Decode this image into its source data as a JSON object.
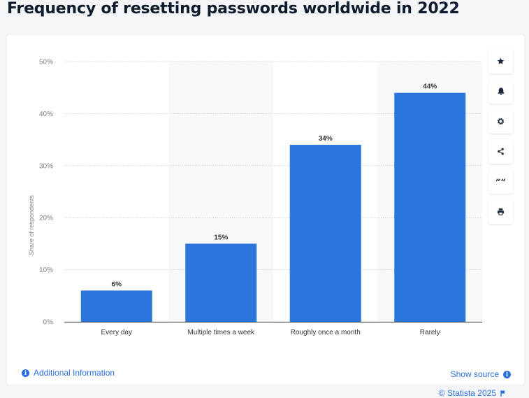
{
  "page": {
    "title": "Frequency of resetting passwords worldwide in 2022"
  },
  "chart_data": {
    "type": "bar",
    "title": "Frequency of resetting passwords worldwide in 2022",
    "xlabel": "",
    "ylabel": "Share of respondents",
    "categories": [
      "Every day",
      "Multiple times a week",
      "Roughly once a month",
      "Rarely"
    ],
    "values": [
      6,
      15,
      34,
      44
    ],
    "value_labels": [
      "6%",
      "15%",
      "34%",
      "44%"
    ],
    "ylim": [
      0,
      50
    ],
    "yticks": [
      0,
      10,
      20,
      30,
      40,
      50
    ],
    "ytick_labels": [
      "0%",
      "10%",
      "20%",
      "30%",
      "40%",
      "50%"
    ],
    "grid": true,
    "alternate_band_shading": true,
    "colors": {
      "bar": "#2a76dd",
      "band": "#f7f8f9",
      "grid": "#c8c8c8"
    }
  },
  "toolbar": {
    "buttons": [
      {
        "name": "favorite",
        "icon": "star-icon"
      },
      {
        "name": "notification",
        "icon": "bell-icon"
      },
      {
        "name": "settings",
        "icon": "gear-icon"
      },
      {
        "name": "share",
        "icon": "share-icon"
      },
      {
        "name": "cite",
        "icon": "quote-icon",
        "glyph": "““"
      },
      {
        "name": "print",
        "icon": "print-icon"
      }
    ]
  },
  "footer": {
    "credit": "© Statista 2025",
    "show_source": "Show source",
    "additional_info": "Additional Information"
  }
}
